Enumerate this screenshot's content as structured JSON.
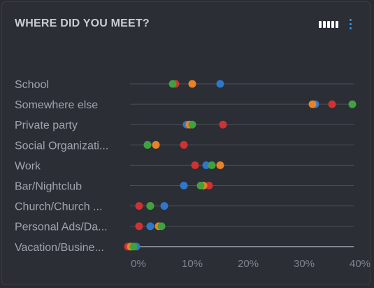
{
  "widget": {
    "title": "WHERE DID YOU MEET?"
  },
  "icons": {
    "chart_type": "bar-chart-icon",
    "menu": "vertical-dots-icon"
  },
  "colors": {
    "blue": "#2d78c8",
    "orange": "#e98226",
    "red": "#cf3232",
    "green": "#3fa23d",
    "gridline": "#4b4e56",
    "baseline": "#8a8f98"
  },
  "chart_data": {
    "type": "scatter",
    "title": "WHERE DID YOU MEET?",
    "categories": [
      "School",
      "Somewhere else",
      "Private party",
      "Social Organizati...",
      "Work",
      "Bar/Nightclub",
      "Church/Church ...",
      "Personal Ads/Da...",
      "Vacation/Busine..."
    ],
    "x_ticks": [
      "0%",
      "10%",
      "20%",
      "30%",
      "40%"
    ],
    "xlim": [
      -1.5,
      40
    ],
    "series": [
      {
        "color": "#cf3232",
        "values": [
          7,
          35,
          15.5,
          8.5,
          10.5,
          13,
          0.5,
          0.5,
          -1.5
        ]
      },
      {
        "color": "#2d78c8",
        "values": [
          15,
          32,
          9,
          2,
          12.5,
          8.5,
          5,
          2.5,
          0
        ]
      },
      {
        "color": "#e98226",
        "values": [
          10,
          31.5,
          9.5,
          3.5,
          15,
          12,
          2.5,
          4,
          -1
        ]
      },
      {
        "color": "#3fa23d",
        "values": [
          6.5,
          39.5,
          10,
          2,
          13.5,
          11.5,
          2.5,
          4.5,
          -0.5
        ]
      }
    ]
  }
}
